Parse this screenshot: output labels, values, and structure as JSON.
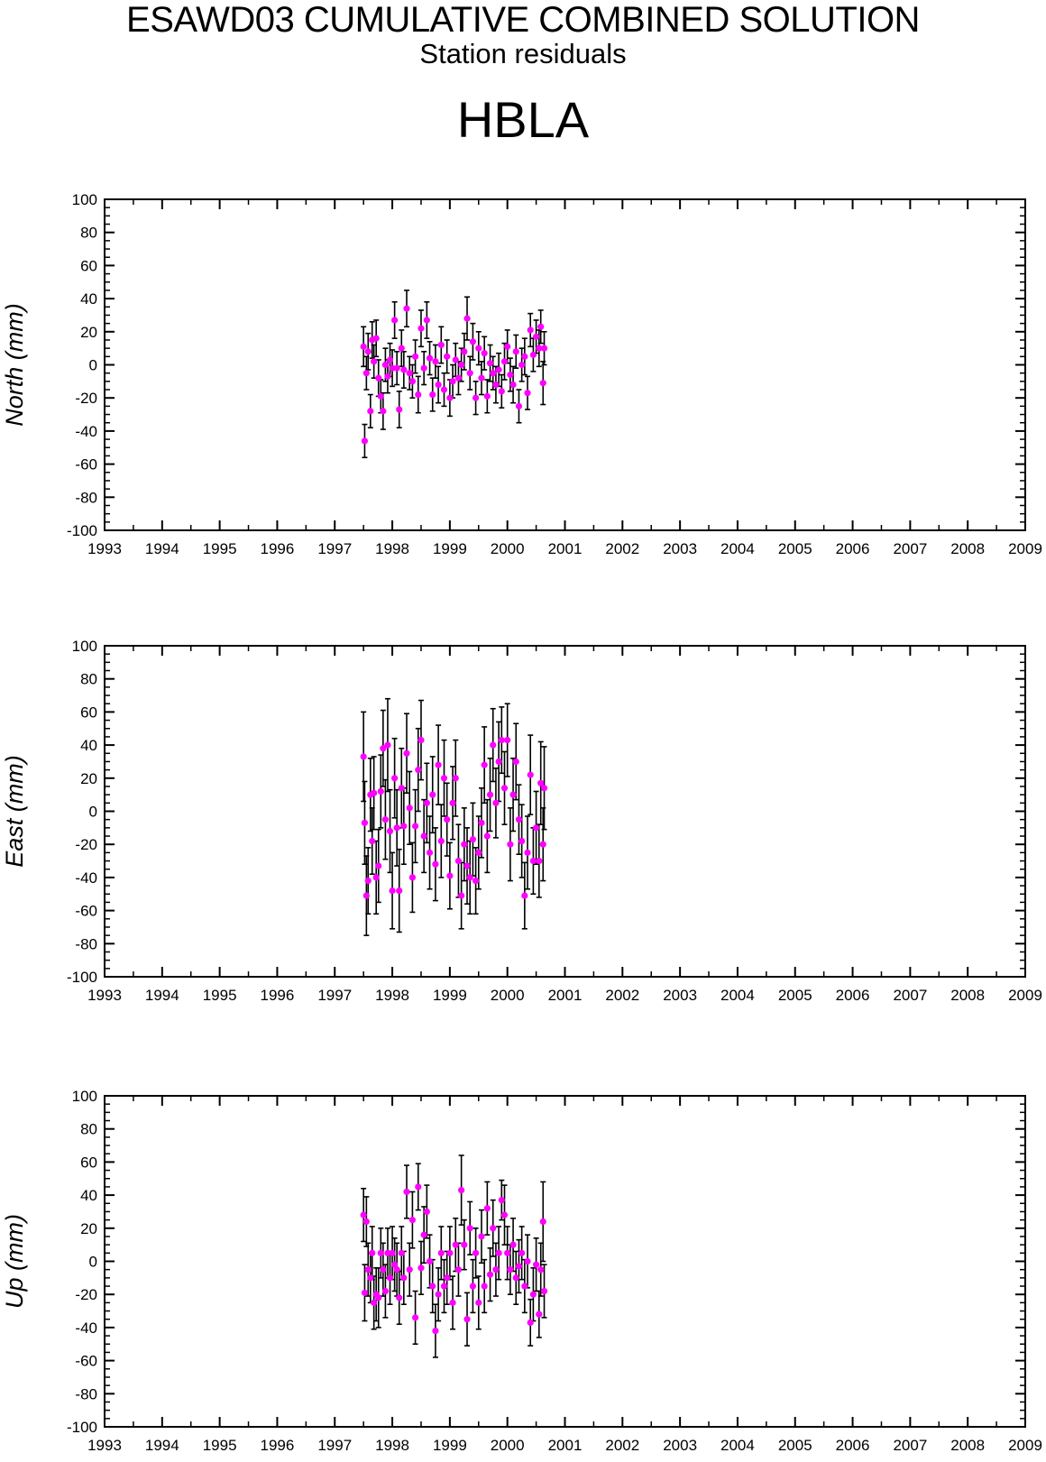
{
  "title": "ESAWD03 CUMULATIVE COMBINED SOLUTION",
  "subtitle": "Station residuals",
  "station": "HBLA",
  "colors": {
    "marker": "#ff00ff",
    "errorbar": "#000000",
    "axes": "#000000",
    "background": "#ffffff"
  },
  "chart_data": [
    {
      "type": "scatter",
      "ylabel": "North (mm)",
      "xlim": [
        1993,
        2009
      ],
      "ylim": [
        -100,
        100
      ],
      "x_ticks": [
        "1993",
        "1994",
        "1995",
        "1996",
        "1997",
        "1998",
        "1999",
        "2000",
        "2001",
        "2002",
        "2003",
        "2004",
        "2005",
        "2006",
        "2007",
        "2008",
        "2009"
      ],
      "y_ticks": [
        "100",
        "80",
        "60",
        "40",
        "20",
        "0",
        "-20",
        "-40",
        "-60",
        "-80",
        "-100"
      ],
      "grid": false,
      "error_bars": true,
      "points": [
        [
          1997.5,
          11,
          12
        ],
        [
          1997.52,
          -46,
          10
        ],
        [
          1997.55,
          -5,
          10
        ],
        [
          1997.58,
          8,
          11
        ],
        [
          1997.62,
          -28,
          10
        ],
        [
          1997.65,
          15,
          11
        ],
        [
          1997.68,
          2,
          10
        ],
        [
          1997.72,
          16,
          11
        ],
        [
          1997.76,
          -8,
          11
        ],
        [
          1997.8,
          -19,
          10
        ],
        [
          1997.84,
          -28,
          11
        ],
        [
          1997.88,
          0,
          10
        ],
        [
          1997.92,
          -7,
          10
        ],
        [
          1997.96,
          3,
          10
        ],
        [
          1998.0,
          -2,
          11
        ],
        [
          1998.04,
          27,
          11
        ],
        [
          1998.08,
          -2,
          10
        ],
        [
          1998.12,
          -27,
          11
        ],
        [
          1998.16,
          10,
          11
        ],
        [
          1998.2,
          -3,
          11
        ],
        [
          1998.25,
          34,
          11
        ],
        [
          1998.3,
          -5,
          10
        ],
        [
          1998.35,
          -10,
          10
        ],
        [
          1998.4,
          5,
          10
        ],
        [
          1998.45,
          -18,
          11
        ],
        [
          1998.5,
          22,
          11
        ],
        [
          1998.55,
          -2,
          10
        ],
        [
          1998.6,
          27,
          11
        ],
        [
          1998.65,
          4,
          10
        ],
        [
          1998.7,
          -18,
          10
        ],
        [
          1998.75,
          2,
          10
        ],
        [
          1998.8,
          -12,
          11
        ],
        [
          1998.85,
          12,
          11
        ],
        [
          1998.9,
          -15,
          10
        ],
        [
          1998.95,
          5,
          10
        ],
        [
          1999.0,
          -20,
          11
        ],
        [
          1999.05,
          -10,
          10
        ],
        [
          1999.1,
          3,
          10
        ],
        [
          1999.15,
          -8,
          10
        ],
        [
          1999.2,
          0,
          10
        ],
        [
          1999.25,
          8,
          11
        ],
        [
          1999.3,
          28,
          13
        ],
        [
          1999.35,
          -5,
          10
        ],
        [
          1999.4,
          14,
          11
        ],
        [
          1999.45,
          -20,
          10
        ],
        [
          1999.5,
          10,
          10
        ],
        [
          1999.55,
          -8,
          10
        ],
        [
          1999.6,
          7,
          10
        ],
        [
          1999.65,
          -19,
          10
        ],
        [
          1999.7,
          1,
          11
        ],
        [
          1999.75,
          -5,
          10
        ],
        [
          1999.8,
          -12,
          11
        ],
        [
          1999.85,
          -3,
          10
        ],
        [
          1999.9,
          -16,
          10
        ],
        [
          1999.95,
          2,
          11
        ],
        [
          2000.0,
          11,
          10
        ],
        [
          2000.05,
          -6,
          10
        ],
        [
          2000.1,
          -12,
          11
        ],
        [
          2000.15,
          8,
          10
        ],
        [
          2000.2,
          -25,
          10
        ],
        [
          2000.25,
          0,
          10
        ],
        [
          2000.3,
          5,
          11
        ],
        [
          2000.35,
          -17,
          10
        ],
        [
          2000.4,
          21,
          10
        ],
        [
          2000.45,
          6,
          10
        ],
        [
          2000.5,
          17,
          10
        ],
        [
          2000.55,
          10,
          11
        ],
        [
          2000.58,
          23,
          10
        ],
        [
          2000.62,
          -11,
          13
        ],
        [
          2000.64,
          10,
          10
        ]
      ]
    },
    {
      "type": "scatter",
      "ylabel": "East (mm)",
      "xlim": [
        1993,
        2009
      ],
      "ylim": [
        -100,
        100
      ],
      "x_ticks": [
        "1993",
        "1994",
        "1995",
        "1996",
        "1997",
        "1998",
        "1999",
        "2000",
        "2001",
        "2002",
        "2003",
        "2004",
        "2005",
        "2006",
        "2007",
        "2008",
        "2009"
      ],
      "y_ticks": [
        "100",
        "80",
        "60",
        "40",
        "20",
        "0",
        "-20",
        "-40",
        "-60",
        "-80",
        "-100"
      ],
      "grid": false,
      "error_bars": true,
      "points": [
        [
          1997.5,
          33,
          27
        ],
        [
          1997.52,
          -7,
          25
        ],
        [
          1997.55,
          -51,
          24
        ],
        [
          1997.58,
          -42,
          20
        ],
        [
          1997.62,
          10,
          22
        ],
        [
          1997.65,
          -18,
          20
        ],
        [
          1997.68,
          11,
          22
        ],
        [
          1997.72,
          -40,
          22
        ],
        [
          1997.76,
          -33,
          22
        ],
        [
          1997.8,
          12,
          22
        ],
        [
          1997.84,
          38,
          23
        ],
        [
          1997.88,
          -5,
          24
        ],
        [
          1997.92,
          40,
          28
        ],
        [
          1997.96,
          -12,
          25
        ],
        [
          1998.0,
          -48,
          23
        ],
        [
          1998.04,
          20,
          24
        ],
        [
          1998.08,
          -10,
          23
        ],
        [
          1998.12,
          -48,
          25
        ],
        [
          1998.16,
          14,
          24
        ],
        [
          1998.2,
          -9,
          23
        ],
        [
          1998.25,
          35,
          24
        ],
        [
          1998.3,
          2,
          22
        ],
        [
          1998.35,
          -40,
          21
        ],
        [
          1998.4,
          -9,
          22
        ],
        [
          1998.45,
          25,
          25
        ],
        [
          1998.5,
          43,
          24
        ],
        [
          1998.55,
          -15,
          22
        ],
        [
          1998.6,
          5,
          24
        ],
        [
          1998.65,
          -25,
          22
        ],
        [
          1998.7,
          10,
          23
        ],
        [
          1998.75,
          -32,
          22
        ],
        [
          1998.8,
          28,
          24
        ],
        [
          1998.85,
          -18,
          22
        ],
        [
          1998.9,
          20,
          23
        ],
        [
          1998.95,
          -5,
          22
        ],
        [
          1999.0,
          -39,
          20
        ],
        [
          1999.05,
          5,
          22
        ],
        [
          1999.1,
          20,
          23
        ],
        [
          1999.15,
          -30,
          22
        ],
        [
          1999.2,
          -51,
          20
        ],
        [
          1999.25,
          -20,
          22
        ],
        [
          1999.3,
          -33,
          23
        ],
        [
          1999.35,
          -40,
          22
        ],
        [
          1999.4,
          -17,
          22
        ],
        [
          1999.45,
          -42,
          20
        ],
        [
          1999.5,
          -25,
          22
        ],
        [
          1999.55,
          -7,
          21
        ],
        [
          1999.6,
          28,
          23
        ],
        [
          1999.65,
          -15,
          22
        ],
        [
          1999.7,
          10,
          22
        ],
        [
          1999.75,
          40,
          22
        ],
        [
          1999.8,
          5,
          21
        ],
        [
          1999.85,
          30,
          24
        ],
        [
          1999.9,
          43,
          20
        ],
        [
          1999.95,
          14,
          22
        ],
        [
          2000.0,
          43,
          22
        ],
        [
          2000.05,
          -20,
          22
        ],
        [
          2000.1,
          10,
          22
        ],
        [
          2000.15,
          30,
          23
        ],
        [
          2000.2,
          -5,
          21
        ],
        [
          2000.25,
          -18,
          22
        ],
        [
          2000.3,
          -51,
          20
        ],
        [
          2000.35,
          -25,
          22
        ],
        [
          2000.4,
          22,
          24
        ],
        [
          2000.45,
          -30,
          20
        ],
        [
          2000.5,
          -10,
          22
        ],
        [
          2000.55,
          -30,
          22
        ],
        [
          2000.58,
          17,
          25
        ],
        [
          2000.62,
          -20,
          22
        ],
        [
          2000.64,
          14,
          25
        ]
      ]
    },
    {
      "type": "scatter",
      "ylabel": "Up (mm)",
      "xlim": [
        1993,
        2009
      ],
      "ylim": [
        -100,
        100
      ],
      "x_ticks": [
        "1993",
        "1994",
        "1995",
        "1996",
        "1997",
        "1998",
        "1999",
        "2000",
        "2001",
        "2002",
        "2003",
        "2004",
        "2005",
        "2006",
        "2007",
        "2008",
        "2009"
      ],
      "y_ticks": [
        "100",
        "80",
        "60",
        "40",
        "20",
        "0",
        "-20",
        "-40",
        "-60",
        "-80",
        "-100"
      ],
      "grid": false,
      "error_bars": true,
      "points": [
        [
          1997.5,
          28,
          16
        ],
        [
          1997.52,
          -19,
          17
        ],
        [
          1997.55,
          24,
          15
        ],
        [
          1997.58,
          -5,
          16
        ],
        [
          1997.62,
          -10,
          15
        ],
        [
          1997.65,
          5,
          16
        ],
        [
          1997.68,
          -25,
          16
        ],
        [
          1997.72,
          -20,
          16
        ],
        [
          1997.76,
          -22,
          18
        ],
        [
          1997.8,
          5,
          15
        ],
        [
          1997.84,
          -5,
          16
        ],
        [
          1997.88,
          -18,
          16
        ],
        [
          1997.92,
          5,
          15
        ],
        [
          1997.96,
          -10,
          16
        ],
        [
          1998.0,
          5,
          16
        ],
        [
          1998.04,
          -2,
          16
        ],
        [
          1998.08,
          -5,
          16
        ],
        [
          1998.12,
          -22,
          16
        ],
        [
          1998.16,
          5,
          16
        ],
        [
          1998.2,
          -10,
          16
        ],
        [
          1998.25,
          42,
          16
        ],
        [
          1998.3,
          -5,
          16
        ],
        [
          1998.35,
          25,
          17
        ],
        [
          1998.4,
          -34,
          16
        ],
        [
          1998.45,
          45,
          14
        ],
        [
          1998.5,
          -4,
          16
        ],
        [
          1998.55,
          16,
          17
        ],
        [
          1998.6,
          30,
          16
        ],
        [
          1998.65,
          0,
          16
        ],
        [
          1998.7,
          -15,
          16
        ],
        [
          1998.75,
          -42,
          16
        ],
        [
          1998.8,
          -20,
          16
        ],
        [
          1998.85,
          5,
          16
        ],
        [
          1998.9,
          -15,
          16
        ],
        [
          1998.95,
          -10,
          16
        ],
        [
          1999.0,
          5,
          16
        ],
        [
          1999.05,
          -25,
          16
        ],
        [
          1999.1,
          10,
          16
        ],
        [
          1999.15,
          -5,
          16
        ],
        [
          1999.2,
          43,
          21
        ],
        [
          1999.25,
          10,
          15
        ],
        [
          1999.3,
          -35,
          16
        ],
        [
          1999.35,
          20,
          16
        ],
        [
          1999.4,
          -15,
          16
        ],
        [
          1999.45,
          5,
          15
        ],
        [
          1999.5,
          -25,
          16
        ],
        [
          1999.55,
          15,
          16
        ],
        [
          1999.6,
          -15,
          16
        ],
        [
          1999.65,
          32,
          16
        ],
        [
          1999.7,
          -8,
          16
        ],
        [
          1999.75,
          20,
          17
        ],
        [
          1999.8,
          -5,
          16
        ],
        [
          1999.85,
          5,
          16
        ],
        [
          1999.9,
          37,
          12
        ],
        [
          1999.95,
          28,
          18
        ],
        [
          2000.0,
          5,
          16
        ],
        [
          2000.05,
          -5,
          15
        ],
        [
          2000.1,
          10,
          16
        ],
        [
          2000.15,
          -10,
          16
        ],
        [
          2000.2,
          -3,
          16
        ],
        [
          2000.25,
          5,
          16
        ],
        [
          2000.3,
          -15,
          16
        ],
        [
          2000.35,
          0,
          16
        ],
        [
          2000.4,
          -37,
          14
        ],
        [
          2000.45,
          -20,
          16
        ],
        [
          2000.5,
          -2,
          16
        ],
        [
          2000.55,
          -32,
          14
        ],
        [
          2000.58,
          -5,
          16
        ],
        [
          2000.62,
          24,
          24
        ],
        [
          2000.64,
          -18,
          16
        ]
      ]
    }
  ]
}
